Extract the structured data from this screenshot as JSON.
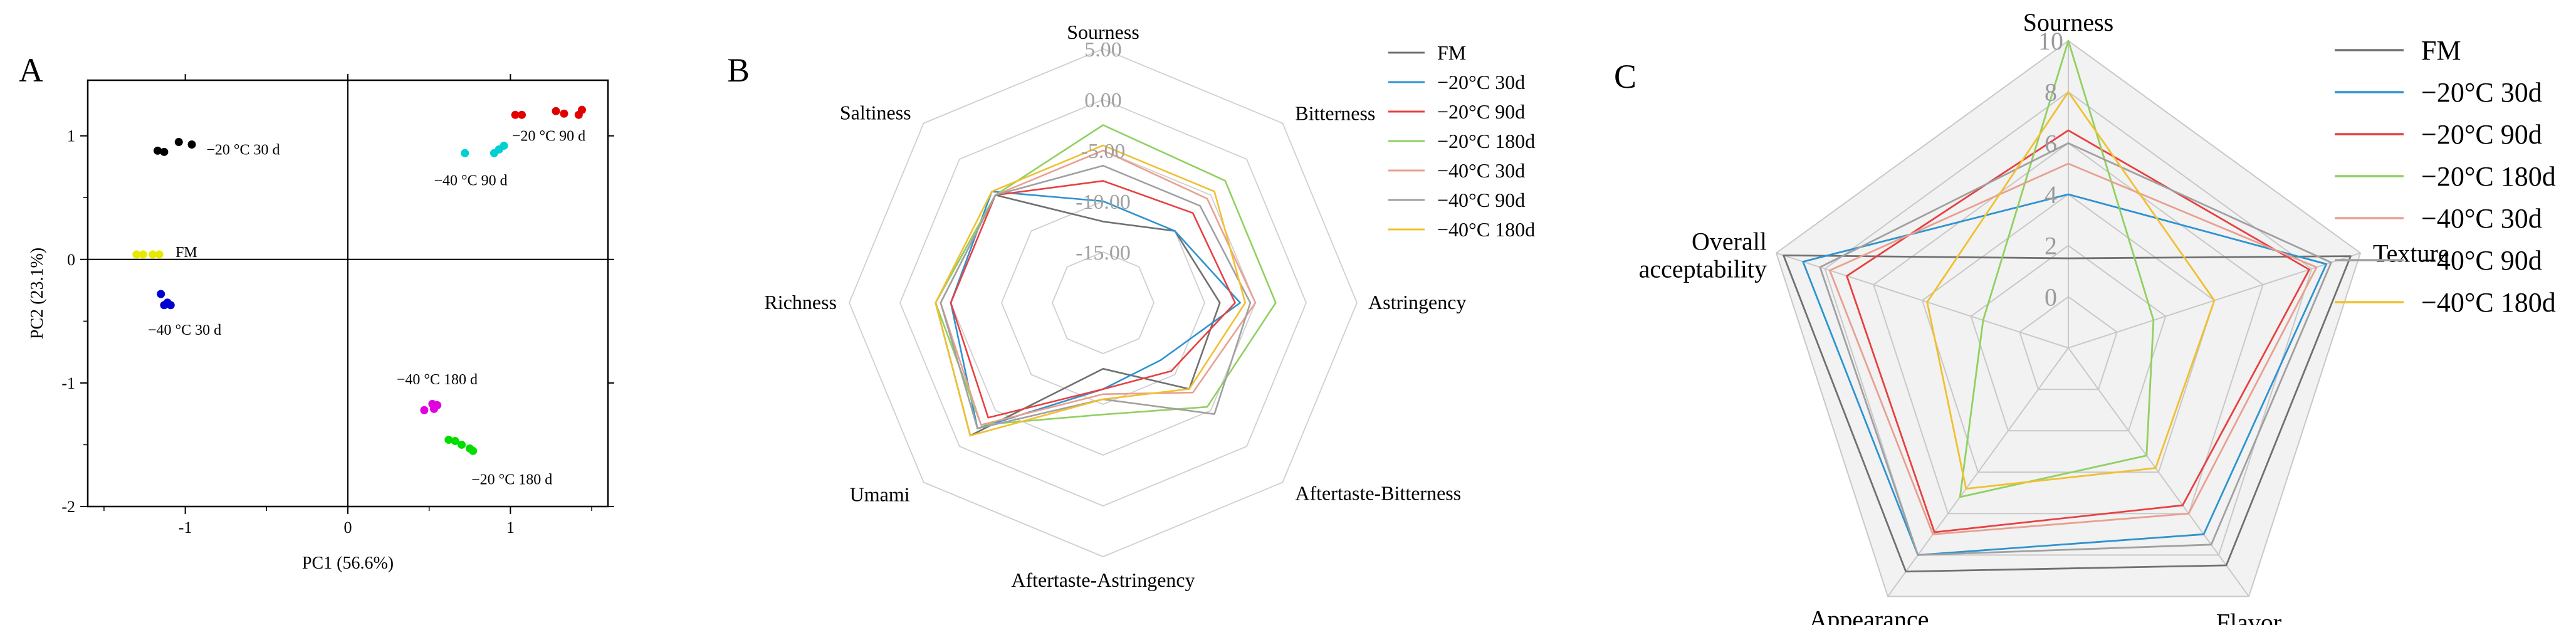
{
  "panels": {
    "A": {
      "label": "A",
      "xlabel": "PC1 (56.6%)",
      "ylabel": "PC2 (23.1%)",
      "xlim": [
        -1.6,
        1.6
      ],
      "ylim": [
        -2,
        1.45
      ],
      "xticks": [
        -1,
        0,
        1
      ],
      "yticks": [
        -2,
        -1,
        0,
        1
      ],
      "xtick_labels": [
        "-1",
        "0",
        "1"
      ],
      "ytick_labels": [
        "-2",
        "-1",
        "0",
        "1"
      ]
    },
    "B": {
      "label": "B",
      "ring_labels": [
        "5.00",
        "0.00",
        "-5.00",
        "-10.00",
        "-15.00"
      ]
    },
    "C": {
      "label": "C",
      "ring_labels": [
        "10",
        "8",
        "6",
        "4",
        "2",
        "0"
      ]
    }
  },
  "chart_data": [
    {
      "type": "scatter",
      "title": "",
      "xlabel": "PC1 (56.6%)",
      "ylabel": "PC2 (23.1%)",
      "xlim": [
        -1.6,
        1.6
      ],
      "ylim": [
        -2,
        1.45
      ],
      "groups": [
        {
          "name": "FM",
          "label": "FM",
          "color": "#e8e800",
          "points": [
            [
              -1.3,
              0.04
            ],
            [
              -1.26,
              0.04
            ],
            [
              -1.2,
              0.04
            ],
            [
              -1.16,
              0.04
            ]
          ]
        },
        {
          "name": "-20°C 30d",
          "label": "−20 °C 30 d",
          "color": "#000000",
          "points": [
            [
              -1.17,
              0.88
            ],
            [
              -1.13,
              0.87
            ],
            [
              -1.04,
              0.95
            ],
            [
              -0.96,
              0.93
            ]
          ]
        },
        {
          "name": "-40°C 30d",
          "label": "−40 °C 30 d",
          "color": "#0000d0",
          "points": [
            [
              -1.15,
              -0.28
            ],
            [
              -1.13,
              -0.37
            ],
            [
              -1.11,
              -0.35
            ],
            [
              -1.09,
              -0.37
            ]
          ]
        },
        {
          "name": "-40°C 90d",
          "label": "−40 °C 90 d",
          "color": "#00d0d0",
          "points": [
            [
              0.72,
              0.86
            ],
            [
              0.9,
              0.86
            ],
            [
              0.93,
              0.89
            ],
            [
              0.96,
              0.92
            ]
          ]
        },
        {
          "name": "-20°C 90d",
          "label": "−20 °C 90 d",
          "color": "#e00000",
          "points": [
            [
              1.03,
              1.17
            ],
            [
              1.07,
              1.17
            ],
            [
              1.28,
              1.2
            ],
            [
              1.33,
              1.18
            ],
            [
              1.42,
              1.17
            ],
            [
              1.44,
              1.21
            ]
          ]
        },
        {
          "name": "-40°C 180d",
          "label": "−40 °C 180 d",
          "color": "#e000e0",
          "points": [
            [
              0.47,
              -1.22
            ],
            [
              0.52,
              -1.17
            ],
            [
              0.53,
              -1.21
            ],
            [
              0.55,
              -1.18
            ]
          ]
        },
        {
          "name": "-20°C 180d",
          "label": "−20 °C 180 d",
          "color": "#00dd00",
          "points": [
            [
              0.62,
              -1.46
            ],
            [
              0.66,
              -1.47
            ],
            [
              0.7,
              -1.5
            ],
            [
              0.75,
              -1.53
            ],
            [
              0.77,
              -1.55
            ]
          ]
        }
      ]
    },
    {
      "type": "radar",
      "title": "",
      "axes": [
        "Sourness",
        "Bitterness",
        "Astringency",
        "Aftertaste-Bitterness",
        "Aftertaste-Astringency",
        "Umami",
        "Richness",
        "Saltiness"
      ],
      "range": [
        -20,
        5
      ],
      "rings": [
        5,
        0,
        -5,
        -10,
        -15
      ],
      "series": [
        {
          "name": "FM",
          "color": "#707070",
          "values": [
            -12.0,
            -10.0,
            -8.5,
            -8.0,
            -13.5,
            -1.5,
            -3.5,
            -5.0
          ]
        },
        {
          "name": "−20°C  30d",
          "color": "#2e93d0",
          "values": [
            -10.0,
            -10.0,
            -6.5,
            -12.0,
            -11.5,
            -2.5,
            -5.0,
            -4.5
          ]
        },
        {
          "name": "−20°C  90d",
          "color": "#e84040",
          "values": [
            -8.0,
            -7.5,
            -7.0,
            -10.5,
            -11.5,
            -4.0,
            -5.0,
            -5.0
          ]
        },
        {
          "name": "−20°C 180d",
          "color": "#90d060",
          "values": [
            -2.5,
            -3.0,
            -3.0,
            -5.5,
            -9.0,
            -3.0,
            -3.5,
            -5.0
          ]
        },
        {
          "name": "−40°C  30d",
          "color": "#e8a090",
          "values": [
            -5.0,
            -5.5,
            -5.0,
            -7.5,
            -11.0,
            -3.0,
            -4.0,
            -5.0
          ]
        },
        {
          "name": "−40°C  90d",
          "color": "#a0a0a0",
          "values": [
            -6.5,
            -6.5,
            -5.5,
            -4.5,
            -10.5,
            -2.5,
            -4.0,
            -5.0
          ]
        },
        {
          "name": "−40°C 180d",
          "color": "#f0c030",
          "values": [
            -4.5,
            -4.5,
            -6.0,
            -8.0,
            -10.5,
            -1.5,
            -3.5,
            -4.5
          ]
        }
      ]
    },
    {
      "type": "radar",
      "title": "",
      "axes": [
        "Sourness",
        "Texture",
        "Flavor",
        "Appearance",
        "Overall acceptability"
      ],
      "axis_labels": [
        [
          "Sourness"
        ],
        [
          "Texture"
        ],
        [
          "Flavor"
        ],
        [
          "Appearance"
        ],
        [
          "Overall",
          "acceptability"
        ]
      ],
      "range": [
        -2,
        10
      ],
      "rings": [
        10,
        8,
        6,
        4,
        2,
        0
      ],
      "series": [
        {
          "name": "FM",
          "color": "#707070",
          "values": [
            1.5,
            9.6,
            8.5,
            8.8,
            9.7
          ]
        },
        {
          "name": "−20°C  30d",
          "color": "#2e93d0",
          "values": [
            4.0,
            8.6,
            7.0,
            8.0,
            8.9
          ]
        },
        {
          "name": "−20°C  90d",
          "color": "#e84040",
          "values": [
            6.5,
            7.9,
            5.6,
            6.9,
            7.1
          ]
        },
        {
          "name": "−20°C 180d",
          "color": "#90d060",
          "values": [
            10.0,
            1.5,
            3.2,
            5.2,
            1.5
          ]
        },
        {
          "name": "−40°C  30d",
          "color": "#e8a090",
          "values": [
            5.2,
            8.2,
            6.0,
            7.0,
            7.8
          ]
        },
        {
          "name": "−40°C  90d",
          "color": "#a0a0a0",
          "values": [
            6.0,
            8.8,
            7.5,
            8.0,
            8.2
          ]
        },
        {
          "name": "−40°C 180d",
          "color": "#f0c030",
          "values": [
            8.0,
            4.0,
            3.8,
            4.8,
            3.8
          ]
        }
      ]
    }
  ]
}
